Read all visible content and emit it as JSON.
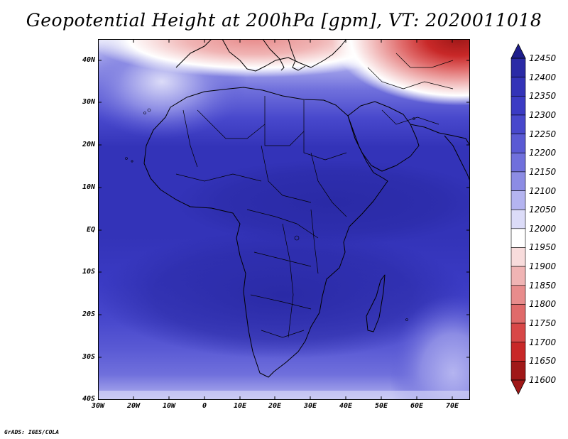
{
  "title": "Geopotential Height at 200hPa [gpm], VT: 2020011018",
  "credit": "GrADS: IGES/COLA",
  "lat_labels": [
    "40N",
    "30N",
    "20N",
    "10N",
    "EQ",
    "10S",
    "20S",
    "30S",
    "40S"
  ],
  "lon_labels": [
    "30W",
    "20W",
    "10W",
    "0",
    "10E",
    "20E",
    "30E",
    "40E",
    "50E",
    "60E",
    "70E"
  ],
  "colorbar": {
    "levels": [
      "12450",
      "12400",
      "12350",
      "12300",
      "12250",
      "12200",
      "12150",
      "12100",
      "12050",
      "12000",
      "11950",
      "11900",
      "11850",
      "11800",
      "11750",
      "11700",
      "11650",
      "11600"
    ],
    "colors": [
      "#1e1e8c",
      "#2a2aa6",
      "#3333b8",
      "#3b3bc4",
      "#4848cc",
      "#5a5ad4",
      "#7070dc",
      "#8c8ce4",
      "#b4b4f0",
      "#dcdcf8",
      "#ffffff",
      "#f8dcdc",
      "#f0b4b4",
      "#e88c8c",
      "#e06a6a",
      "#d84848",
      "#c82828",
      "#a01818"
    ]
  },
  "map": {
    "region": "Africa, Middle East and Southern Europe",
    "lon_range": [
      -30,
      76
    ],
    "lat_range": [
      -40,
      45
    ],
    "field": "Geopotential Height at 200hPa",
    "units": "gpm"
  }
}
